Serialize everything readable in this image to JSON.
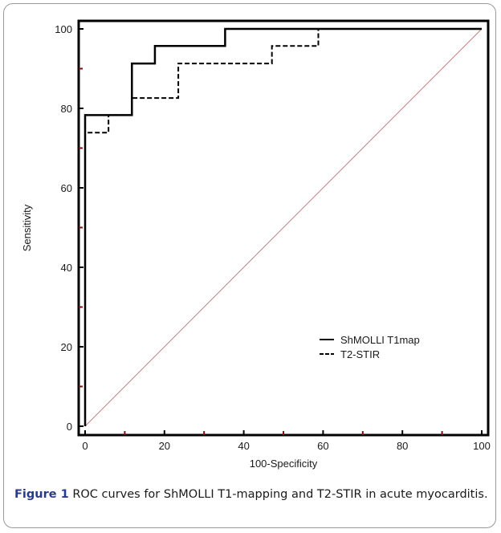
{
  "chart_data": {
    "type": "line",
    "xlabel": "100-Specificity",
    "ylabel": "Sensitivity",
    "xlim": [
      0,
      100
    ],
    "ylim": [
      0,
      100
    ],
    "xticks": [
      0,
      20,
      40,
      60,
      80,
      100
    ],
    "yticks": [
      0,
      20,
      40,
      60,
      80,
      100
    ],
    "legend_position": "bottom-right",
    "series": [
      {
        "name": "ShMOLLI T1map",
        "style": "solid",
        "color": "#000000",
        "x": [
          0,
          0,
          11.8,
          11.8,
          17.6,
          17.6,
          35.3,
          35.3,
          100
        ],
        "y": [
          0,
          78.3,
          78.3,
          91.3,
          91.3,
          95.7,
          95.7,
          100,
          100
        ]
      },
      {
        "name": "T2-STIR",
        "style": "dashed",
        "color": "#000000",
        "x": [
          0,
          0,
          5.9,
          5.9,
          11.8,
          11.8,
          23.5,
          23.5,
          47.1,
          47.1,
          58.8,
          58.8,
          100
        ],
        "y": [
          0,
          73.9,
          73.9,
          78.3,
          78.3,
          82.6,
          82.6,
          91.3,
          91.3,
          95.7,
          95.7,
          100,
          100
        ]
      }
    ],
    "reference_line": {
      "x": [
        0,
        100
      ],
      "y": [
        0,
        100
      ],
      "color": "#c08080"
    }
  },
  "caption": {
    "label": "Figure 1",
    "text": "ROC curves for ShMOLLI T1-mapping and T2-STIR in acute myocarditis."
  },
  "colors": {
    "axis": "#000000",
    "tick_major": "#000000",
    "tick_minor": "#7a1010",
    "figure_label": "#2a3a8a"
  }
}
